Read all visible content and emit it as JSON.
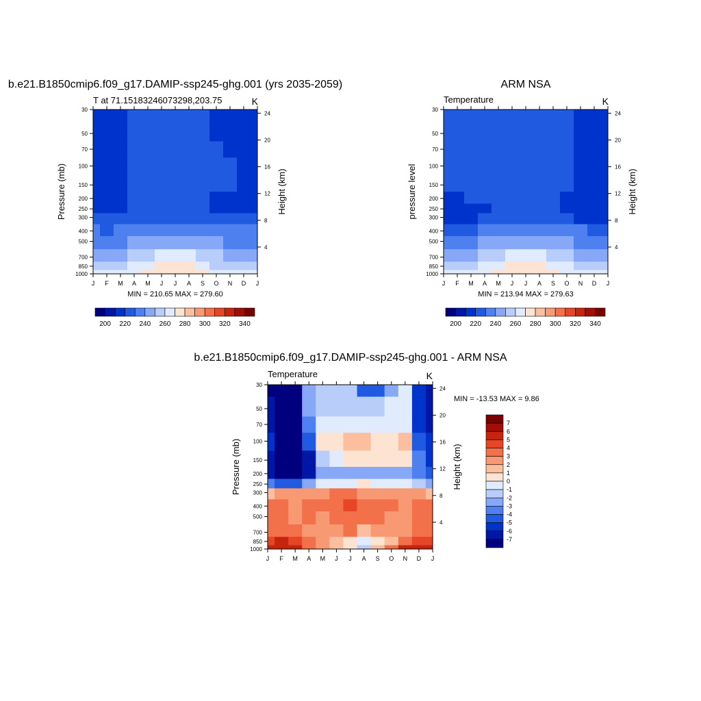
{
  "months": [
    "J",
    "F",
    "M",
    "A",
    "M",
    "J",
    "J",
    "A",
    "S",
    "O",
    "N",
    "D",
    "J"
  ],
  "pressure_ticks": [
    30,
    50,
    70,
    100,
    150,
    200,
    250,
    300,
    400,
    500,
    700,
    850,
    1000
  ],
  "height_ticks": [
    24,
    20,
    16,
    12,
    8,
    4
  ],
  "colors": {
    "abs_scale": [
      "#00007f",
      "#0016a6",
      "#0033cc",
      "#1f5ae0",
      "#4f80f0",
      "#86a8f7",
      "#b9cdfa",
      "#e0ebfd",
      "#fde3d2",
      "#fbbf9f",
      "#f79a73",
      "#f2704a",
      "#e64526",
      "#c72410",
      "#a00e05",
      "#7a0000"
    ],
    "diff_scale": [
      "#00007f",
      "#0016a6",
      "#0033cc",
      "#1f5ae0",
      "#4f80f0",
      "#86a8f7",
      "#b9cdfa",
      "#e0ebfd",
      "#fde3d2",
      "#fbbf9f",
      "#f79a73",
      "#f2704a",
      "#e64526",
      "#c72410",
      "#a00e05",
      "#7a0000"
    ]
  },
  "panels": [
    {
      "id": "model",
      "title": "b.e21.B1850cmip6.f09_g17.DAMIP-ssp245-ghg.001 (yrs 2035-2059)",
      "left_label": "T at 71.15183246073298,203.75",
      "right_label": "K",
      "y_title": "Pressure (mb)",
      "y2_title": "Height (km)",
      "minmax": "MIN = 210.65 MAX = 279.60"
    },
    {
      "id": "obs",
      "title": "ARM NSA",
      "left_label": "Temperature",
      "right_label": "K",
      "y_title": "pressure level",
      "y2_title": "Height (km)",
      "minmax": "MIN = 213.94 MAX = 279.63"
    },
    {
      "id": "diff",
      "title": "b.e21.B1850cmip6.f09_g17.DAMIP-ssp245-ghg.001 - ARM NSA",
      "left_label": "Temperature",
      "right_label": "K",
      "y_title": "Pressure (mb)",
      "y2_title": "Height (km)",
      "minmax": "MIN = -13.53 MAX =   9.86"
    }
  ],
  "abs_colorbar_labels": [
    "200",
    "220",
    "240",
    "260",
    "280",
    "300",
    "320",
    "340"
  ],
  "diff_colorbar_labels": [
    "7",
    "6",
    "5",
    "4",
    "3",
    "2",
    "1",
    "0",
    "-1",
    "-2",
    "-3",
    "-4",
    "-5",
    "-6",
    "-7"
  ],
  "chart_data": [
    {
      "type": "heatmap",
      "title": "b.e21.B1850cmip6.f09_g17.DAMIP-ssp245-ghg.001 (yrs 2035-2059)",
      "xlabel": "",
      "ylabel": "Pressure (mb)",
      "x": [
        "J",
        "F",
        "M",
        "A",
        "M",
        "J",
        "J",
        "A",
        "S",
        "O",
        "N",
        "D",
        "J"
      ],
      "y": [
        30,
        50,
        70,
        100,
        150,
        200,
        250,
        300,
        400,
        500,
        700,
        850,
        1000
      ],
      "ylim": [
        30,
        1000
      ],
      "levels": [
        200,
        210,
        220,
        230,
        240,
        250,
        260,
        270,
        280,
        290,
        300,
        310,
        320,
        330,
        340
      ],
      "values": [
        [
          215,
          215,
          216,
          222,
          222,
          222,
          222,
          222,
          222,
          216,
          215,
          215,
          215
        ],
        [
          215,
          215,
          216,
          222,
          222,
          222,
          222,
          222,
          222,
          218,
          215,
          215,
          215
        ],
        [
          215,
          215,
          216,
          222,
          222,
          222,
          222,
          222,
          222,
          222,
          218,
          215,
          215
        ],
        [
          215,
          215,
          216,
          222,
          222,
          222,
          222,
          222,
          222,
          222,
          222,
          215,
          215
        ],
        [
          215,
          215,
          216,
          222,
          222,
          222,
          222,
          222,
          222,
          222,
          221,
          215,
          215
        ],
        [
          215,
          215,
          216,
          222,
          222,
          222,
          222,
          222,
          220,
          217,
          216,
          215,
          215
        ],
        [
          216,
          216,
          218,
          222,
          222,
          222,
          222,
          222,
          220,
          218,
          217,
          216,
          216
        ],
        [
          220,
          220,
          221,
          222,
          223,
          224,
          225,
          225,
          224,
          223,
          222,
          221,
          220
        ],
        [
          230,
          229,
          230,
          233,
          236,
          238,
          239,
          238,
          236,
          233,
          231,
          230,
          230
        ],
        [
          237,
          236,
          237,
          241,
          245,
          248,
          249,
          248,
          245,
          241,
          238,
          237,
          237
        ],
        [
          248,
          247,
          248,
          252,
          257,
          261,
          262,
          260,
          256,
          251,
          249,
          248,
          248
        ],
        [
          256,
          255,
          256,
          260,
          266,
          271,
          272,
          270,
          265,
          259,
          257,
          256,
          256
        ],
        [
          261,
          260,
          262,
          267,
          274,
          279,
          279,
          277,
          271,
          265,
          262,
          261,
          261
        ]
      ],
      "colorbar_labels": [
        "200",
        "220",
        "240",
        "260",
        "280",
        "300",
        "320",
        "340"
      ],
      "minmax": "MIN = 210.65 MAX = 279.60"
    },
    {
      "type": "heatmap",
      "title": "ARM NSA",
      "xlabel": "",
      "ylabel": "pressure level",
      "x": [
        "J",
        "F",
        "M",
        "A",
        "M",
        "J",
        "J",
        "A",
        "S",
        "O",
        "N",
        "D",
        "J"
      ],
      "y": [
        30,
        50,
        70,
        100,
        150,
        200,
        250,
        300,
        400,
        500,
        700,
        850,
        1000
      ],
      "ylim": [
        30,
        1000
      ],
      "levels": [
        200,
        210,
        220,
        230,
        240,
        250,
        260,
        270,
        280,
        290,
        300,
        310,
        320,
        330,
        340
      ],
      "values": [
        [
          222,
          222,
          222,
          222,
          222,
          222,
          222,
          222,
          222,
          222,
          216,
          216,
          216
        ],
        [
          222,
          222,
          222,
          222,
          222,
          222,
          222,
          222,
          222,
          222,
          216,
          216,
          216
        ],
        [
          222,
          222,
          222,
          222,
          222,
          222,
          222,
          222,
          222,
          221,
          216,
          216,
          216
        ],
        [
          222,
          222,
          222,
          222,
          222,
          222,
          222,
          222,
          222,
          221,
          216,
          216,
          216
        ],
        [
          221,
          222,
          222,
          222,
          222,
          222,
          222,
          222,
          222,
          220,
          216,
          216,
          216
        ],
        [
          218,
          219,
          221,
          222,
          222,
          222,
          222,
          222,
          221,
          218,
          216,
          216,
          216
        ],
        [
          216,
          216,
          217,
          219,
          221,
          222,
          222,
          222,
          220,
          217,
          216,
          216,
          216
        ],
        [
          218,
          218,
          219,
          221,
          223,
          225,
          226,
          225,
          223,
          221,
          219,
          218,
          218
        ],
        [
          228,
          228,
          229,
          232,
          235,
          238,
          239,
          238,
          235,
          232,
          230,
          228,
          228
        ],
        [
          236,
          235,
          236,
          240,
          245,
          248,
          249,
          248,
          245,
          241,
          238,
          236,
          236
        ],
        [
          248,
          247,
          248,
          252,
          257,
          261,
          262,
          260,
          256,
          251,
          249,
          248,
          248
        ],
        [
          257,
          256,
          257,
          262,
          268,
          272,
          273,
          271,
          265,
          260,
          258,
          257,
          257
        ],
        [
          262,
          261,
          263,
          268,
          275,
          279,
          279,
          277,
          271,
          266,
          263,
          262,
          262
        ]
      ],
      "colorbar_labels": [
        "200",
        "220",
        "240",
        "260",
        "280",
        "300",
        "320",
        "340"
      ],
      "minmax": "MIN = 213.94 MAX = 279.63"
    },
    {
      "type": "heatmap",
      "title": "b.e21.B1850cmip6.f09_g17.DAMIP-ssp245-ghg.001 - ARM NSA",
      "xlabel": "",
      "ylabel": "Pressure (mb)",
      "x": [
        "J",
        "F",
        "M",
        "A",
        "M",
        "J",
        "J",
        "A",
        "S",
        "O",
        "N",
        "D",
        "J"
      ],
      "y": [
        30,
        50,
        70,
        100,
        150,
        200,
        250,
        300,
        400,
        500,
        700,
        850,
        1000
      ],
      "ylim": [
        30,
        1000
      ],
      "levels": [
        -7,
        -6,
        -5,
        -4,
        -3,
        -2,
        -1,
        0,
        1,
        2,
        3,
        4,
        5,
        6,
        7
      ],
      "values": [
        [
          -8,
          -8,
          -8,
          -3,
          -2,
          -2,
          -2,
          -5,
          -5,
          -3,
          -0.5,
          -6,
          -7
        ],
        [
          -7,
          -8,
          -8,
          -3,
          -2,
          -1.5,
          -1.5,
          -2,
          -2,
          -1,
          -0.5,
          -6,
          -7
        ],
        [
          -7,
          -8,
          -8,
          -4,
          -1,
          -0.5,
          -0.5,
          -0.5,
          -0.5,
          -0.5,
          -0.5,
          -6,
          -7
        ],
        [
          -6,
          -8,
          -8,
          -5,
          0.5,
          0.5,
          1.5,
          1.5,
          0.5,
          0.5,
          1.5,
          -5,
          -6
        ],
        [
          -7,
          -8,
          -8,
          -7,
          -2,
          -0.5,
          0.5,
          0.5,
          0.5,
          0.5,
          0.5,
          -4,
          -6
        ],
        [
          -7,
          -8,
          -8,
          -7,
          -3,
          -3,
          -3,
          -3,
          -3,
          -3,
          -3,
          -4,
          -5
        ],
        [
          -4,
          -5,
          -5,
          -3,
          -1,
          -1,
          -1,
          0,
          -1,
          -1,
          -1,
          -2,
          -3
        ],
        [
          1,
          2,
          2,
          2,
          2.5,
          3,
          3,
          2.5,
          2.5,
          2,
          2,
          2,
          1
        ],
        [
          3,
          3,
          2,
          3,
          3,
          3.5,
          4,
          3,
          3.5,
          3,
          2,
          3,
          3
        ],
        [
          3,
          3,
          2,
          3,
          2.5,
          3,
          3.5,
          3,
          3,
          2.5,
          2,
          3,
          3
        ],
        [
          3,
          3.5,
          3,
          2.5,
          2,
          2.5,
          3,
          1.5,
          2,
          2.5,
          2,
          3.5,
          3
        ],
        [
          4,
          5,
          4,
          3,
          2,
          1.5,
          0.5,
          -0.5,
          0.5,
          1.5,
          3,
          4.5,
          4
        ],
        [
          5,
          5.5,
          5.5,
          3,
          2,
          1,
          0.5,
          -2,
          1,
          3,
          5,
          5.5,
          5
        ]
      ],
      "colorbar_labels": [
        "7",
        "6",
        "5",
        "4",
        "3",
        "2",
        "1",
        "0",
        "-1",
        "-2",
        "-3",
        "-4",
        "-5",
        "-6",
        "-7"
      ],
      "minmax": "MIN = -13.53 MAX =   9.86"
    }
  ]
}
